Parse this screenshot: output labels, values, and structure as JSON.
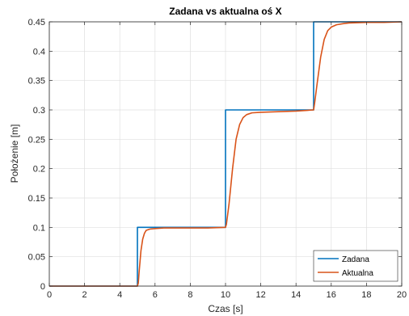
{
  "chart_data": {
    "type": "line",
    "title": "Zadana vs aktualna oś X",
    "xlabel": "Czas [s]",
    "ylabel": "Położenie [m]",
    "xlim": [
      0,
      20
    ],
    "ylim": [
      0,
      0.45
    ],
    "xticks": [
      0,
      2,
      4,
      6,
      8,
      10,
      12,
      14,
      16,
      18,
      20
    ],
    "xtick_labels": [
      "0",
      "2",
      "4",
      "6",
      "8",
      "10",
      "12",
      "14",
      "16",
      "18",
      "20"
    ],
    "yticks": [
      0,
      0.05,
      0.1,
      0.15,
      0.2,
      0.25,
      0.3,
      0.35,
      0.4,
      0.45
    ],
    "ytick_labels": [
      "0",
      "0.05",
      "0.1",
      "0.15",
      "0.2",
      "0.25",
      "0.3",
      "0.35",
      "0.4",
      "0.45"
    ],
    "grid": true,
    "legend_position": "bottom-right",
    "series": [
      {
        "name": "Zadana",
        "color": "#0072BD",
        "x": [
          0,
          5,
          5,
          10,
          10,
          15,
          15,
          20
        ],
        "y": [
          0,
          0,
          0.1,
          0.1,
          0.3,
          0.3,
          0.45,
          0.45
        ]
      },
      {
        "name": "Aktualna",
        "color": "#D95319",
        "x": [
          0,
          5.0,
          5.05,
          5.1,
          5.2,
          5.3,
          5.4,
          5.5,
          5.7,
          6.0,
          6.5,
          7.0,
          8.0,
          9.0,
          10.0,
          10.05,
          10.2,
          10.4,
          10.6,
          10.8,
          11.0,
          11.2,
          11.5,
          12.0,
          13.0,
          14.0,
          15.0,
          15.05,
          15.2,
          15.4,
          15.6,
          15.8,
          16.0,
          16.3,
          16.7,
          17.0,
          18.0,
          19.0,
          20.0
        ],
        "y": [
          0,
          0,
          0.005,
          0.025,
          0.06,
          0.08,
          0.09,
          0.095,
          0.097,
          0.098,
          0.099,
          0.099,
          0.099,
          0.099,
          0.1,
          0.105,
          0.14,
          0.2,
          0.25,
          0.275,
          0.287,
          0.292,
          0.295,
          0.296,
          0.297,
          0.298,
          0.3,
          0.31,
          0.345,
          0.39,
          0.42,
          0.435,
          0.441,
          0.445,
          0.447,
          0.448,
          0.449,
          0.449,
          0.45
        ]
      }
    ]
  }
}
